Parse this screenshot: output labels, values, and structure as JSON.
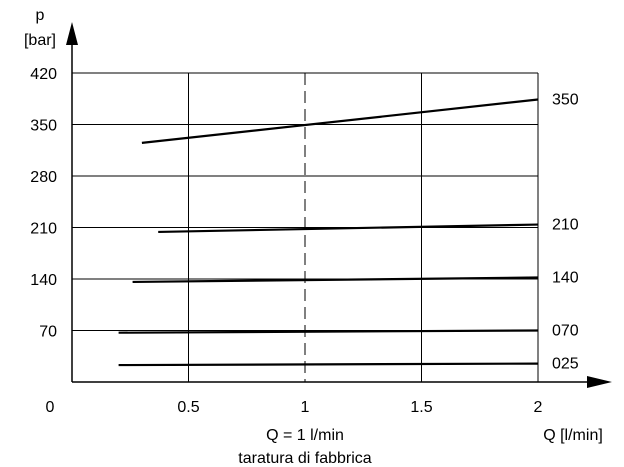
{
  "chart_data": {
    "type": "line",
    "ylabel_line1": "p",
    "ylabel_line2": "[bar]",
    "xlabel": "Q [l/min]",
    "annotation_line1": "Q = 1 l/min",
    "annotation_line2": "taratura di fabbrica",
    "origin_label": "0",
    "xlim": [
      0,
      2
    ],
    "ylim": [
      0,
      420
    ],
    "x_ticks": [
      0.5,
      1,
      1.5,
      2
    ],
    "x_tick_labels": [
      "0.5",
      "1",
      "1.5",
      "2"
    ],
    "y_ticks": [
      70,
      140,
      210,
      280,
      350,
      420
    ],
    "y_tick_labels": [
      "70",
      "140",
      "210",
      "280",
      "350",
      "420"
    ],
    "grid": true,
    "reference_line_x": 1,
    "series": [
      {
        "name": "350",
        "x": [
          0.3,
          2
        ],
        "y": [
          325,
          384
        ]
      },
      {
        "name": "210",
        "x": [
          0.37,
          2
        ],
        "y": [
          204,
          214
        ]
      },
      {
        "name": "140",
        "x": [
          0.26,
          2
        ],
        "y": [
          136,
          142
        ]
      },
      {
        "name": "070",
        "x": [
          0.2,
          2
        ],
        "y": [
          67,
          70
        ]
      },
      {
        "name": "025",
        "x": [
          0.2,
          2
        ],
        "y": [
          23,
          25
        ]
      }
    ]
  }
}
